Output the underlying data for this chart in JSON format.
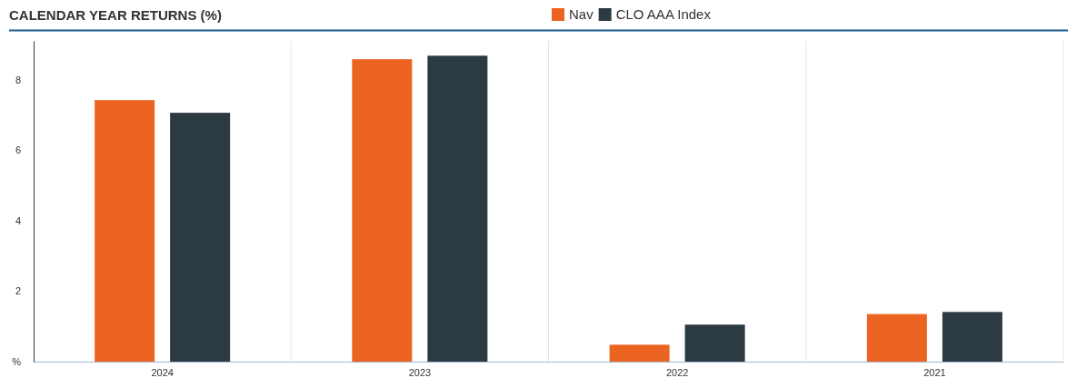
{
  "chart_data": {
    "type": "bar",
    "title": "CALENDAR YEAR RETURNS (%)",
    "categories": [
      "2024",
      "2023",
      "2022",
      "2021"
    ],
    "series": [
      {
        "name": "Nav",
        "color": "#ec6421",
        "values": [
          7.42,
          8.58,
          0.48,
          1.35
        ]
      },
      {
        "name": "CLO AAA Index",
        "color": "#2c3a41",
        "values": [
          7.06,
          8.68,
          1.05,
          1.41
        ]
      }
    ],
    "ylim": [
      0,
      9.1
    ],
    "yticks": [
      {
        "value": 0,
        "label": "%"
      },
      2,
      4,
      6,
      8
    ],
    "grid": "x",
    "legend": "top"
  }
}
